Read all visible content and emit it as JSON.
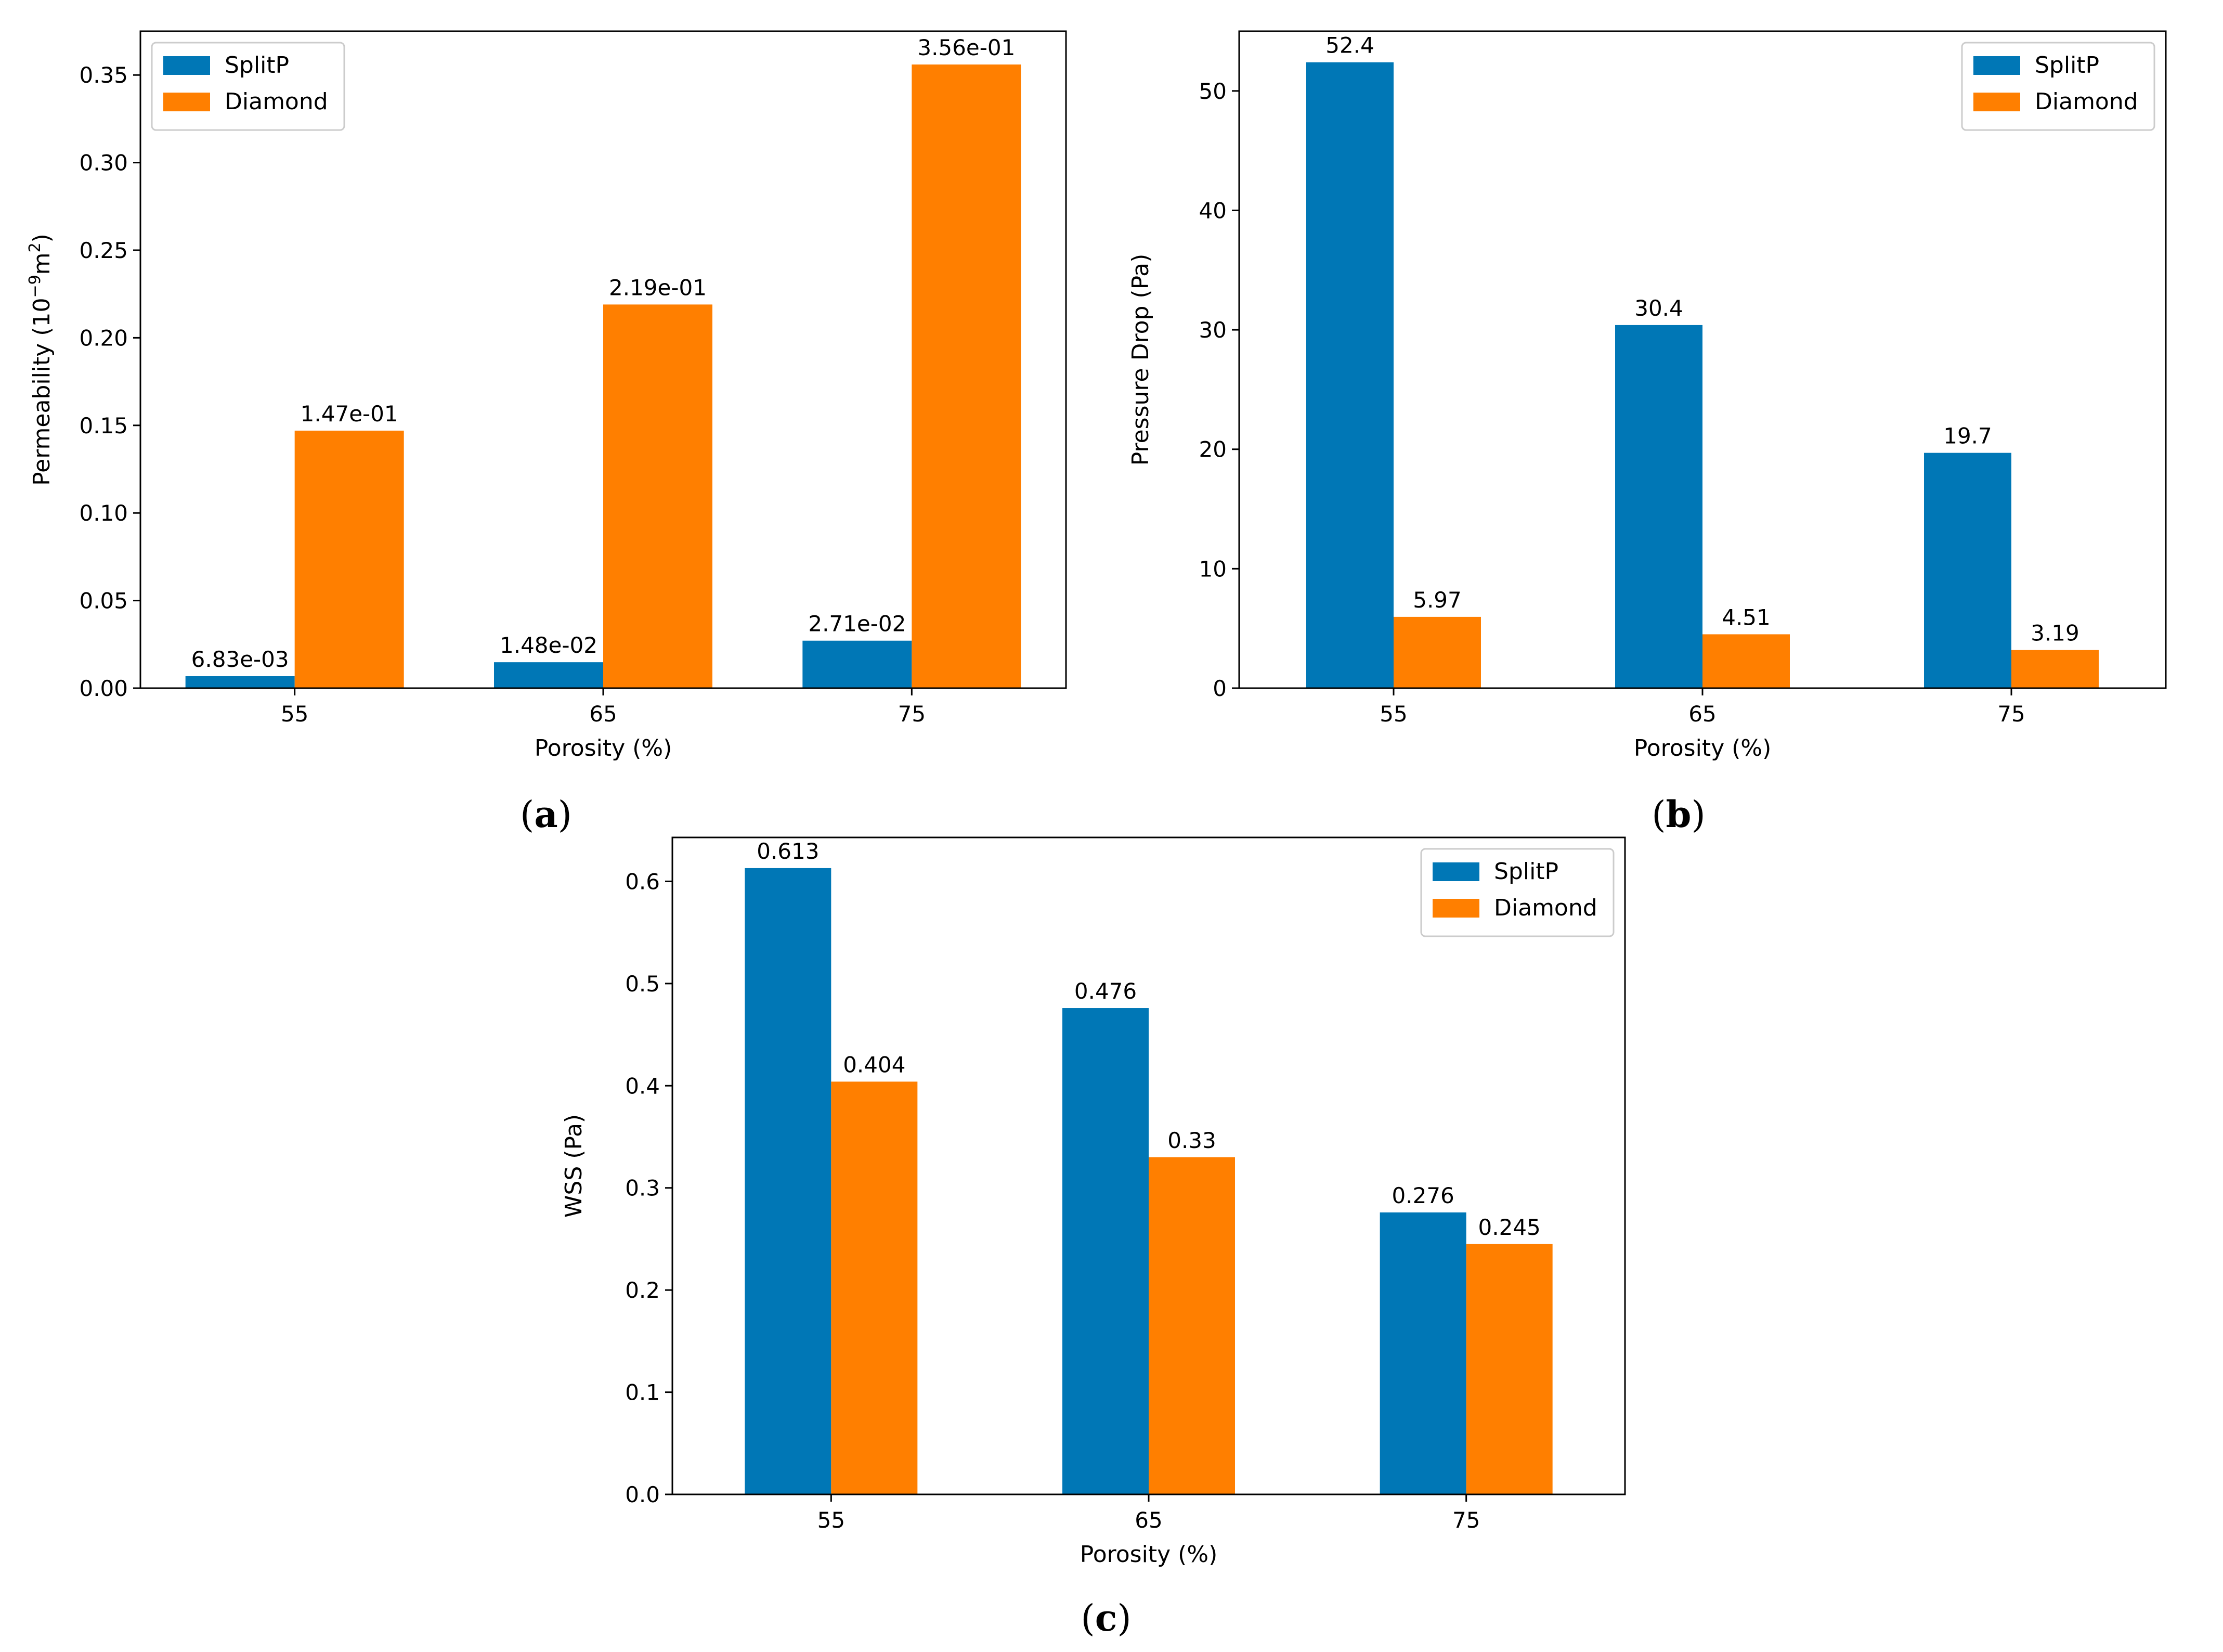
{
  "colors": {
    "SplitP": "#0077b6",
    "Diamond": "#ff7f00"
  },
  "chart_data": [
    {
      "type": "bar",
      "panel": "a",
      "caption_letter": "a",
      "categories": [
        "55",
        "65",
        "75"
      ],
      "series": [
        {
          "name": "SplitP",
          "values": [
            0.00683,
            0.0148,
            0.0271
          ],
          "labels": [
            "6.83e-03",
            "1.48e-02",
            "2.71e-02"
          ]
        },
        {
          "name": "Diamond",
          "values": [
            0.147,
            0.219,
            0.356
          ],
          "labels": [
            "1.47e-01",
            "2.19e-01",
            "3.56e-01"
          ]
        }
      ],
      "xlabel": "Porosity (%)",
      "ylabel": "Permeability (10",
      "ylabel_sup1": "−9",
      "ylabel_mid": "m",
      "ylabel_sup2": "2",
      "ylabel_end": ")",
      "ylim": [
        0,
        0.375
      ],
      "yticks": [
        0,
        0.05,
        0.1,
        0.15,
        0.2,
        0.25,
        0.3,
        0.35
      ],
      "ytick_labels": [
        "0.00",
        "0.05",
        "0.10",
        "0.15",
        "0.20",
        "0.25",
        "0.30",
        "0.35"
      ],
      "legend_position": "top-left",
      "grid": false
    },
    {
      "type": "bar",
      "panel": "b",
      "caption_letter": "b",
      "categories": [
        "55",
        "65",
        "75"
      ],
      "series": [
        {
          "name": "SplitP",
          "values": [
            52.4,
            30.4,
            19.7
          ],
          "labels": [
            "52.4",
            "30.4",
            "19.7"
          ]
        },
        {
          "name": "Diamond",
          "values": [
            5.97,
            4.51,
            3.19
          ],
          "labels": [
            "5.97",
            "4.51",
            "3.19"
          ]
        }
      ],
      "xlabel": "Porosity (%)",
      "ylabel": "Pressure Drop (Pa)",
      "ylim": [
        0,
        55
      ],
      "yticks": [
        0,
        10,
        20,
        30,
        40,
        50
      ],
      "ytick_labels": [
        "0",
        "10",
        "20",
        "30",
        "40",
        "50"
      ],
      "legend_position": "top-right",
      "grid": false
    },
    {
      "type": "bar",
      "panel": "c",
      "caption_letter": "c",
      "categories": [
        "55",
        "65",
        "75"
      ],
      "series": [
        {
          "name": "SplitP",
          "values": [
            0.613,
            0.476,
            0.276
          ],
          "labels": [
            "0.613",
            "0.476",
            "0.276"
          ]
        },
        {
          "name": "Diamond",
          "values": [
            0.404,
            0.33,
            0.245
          ],
          "labels": [
            "0.404",
            "0.33",
            "0.245"
          ]
        }
      ],
      "xlabel": "Porosity (%)",
      "ylabel": "WSS (Pa)",
      "ylim": [
        0,
        0.643
      ],
      "yticks": [
        0,
        0.1,
        0.2,
        0.3,
        0.4,
        0.5,
        0.6
      ],
      "ytick_labels": [
        "0.0",
        "0.1",
        "0.2",
        "0.3",
        "0.4",
        "0.5",
        "0.6"
      ],
      "legend_position": "top-right",
      "grid": false
    }
  ]
}
